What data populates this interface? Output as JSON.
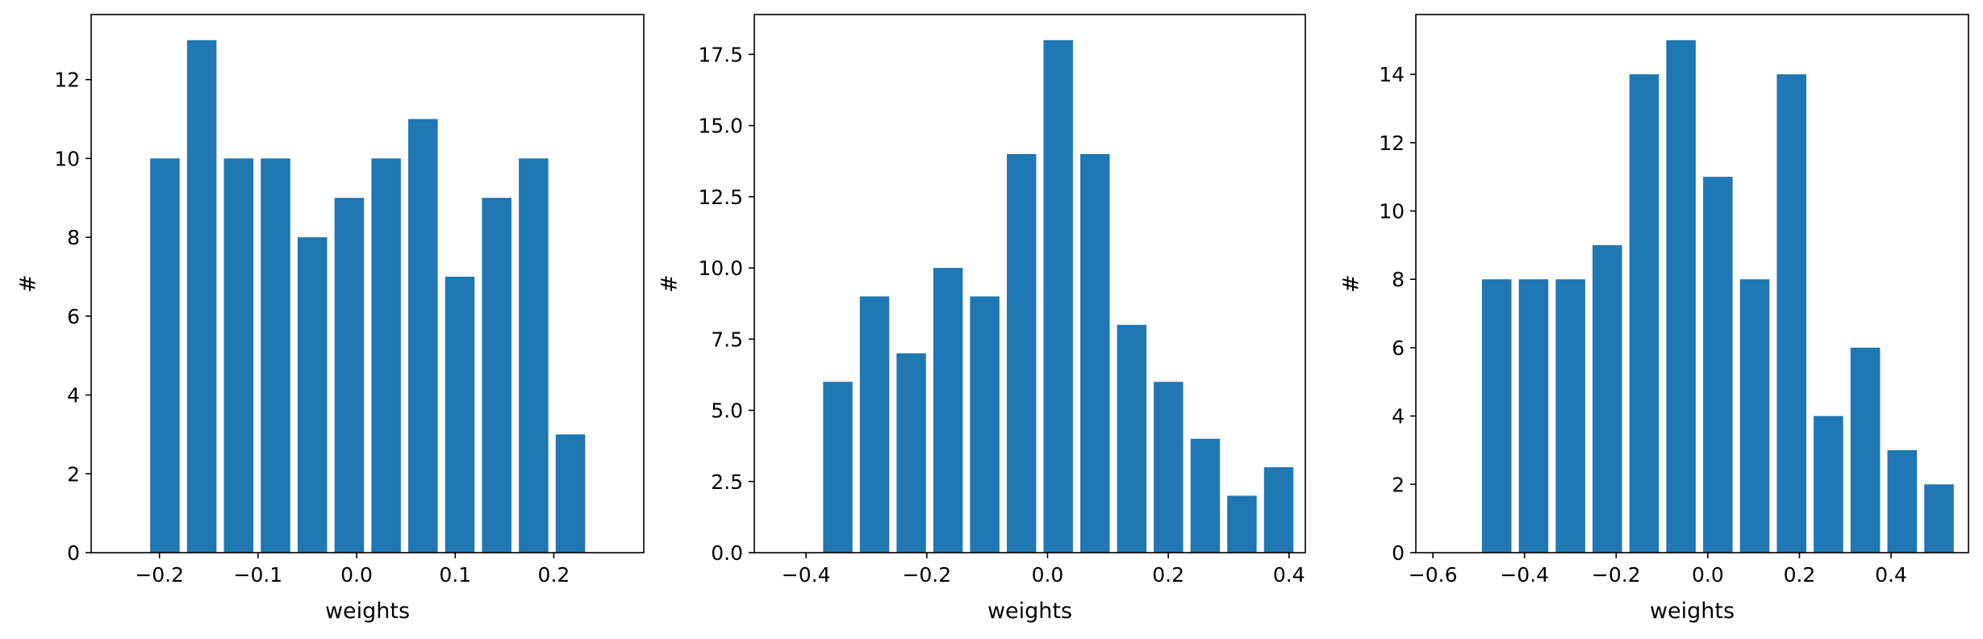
{
  "figure": {
    "background": "#ffffff",
    "bar_color": "#1f77b4"
  },
  "chart_data": [
    {
      "type": "bar",
      "title": "",
      "xlabel": "weights",
      "ylabel": "#",
      "xlim": [
        -0.2693,
        0.2913
      ],
      "ylim": [
        0,
        13.65
      ],
      "xticks": [
        -0.2,
        -0.1,
        0.0,
        0.1,
        0.2
      ],
      "xtick_labels": [
        "−0.2",
        "−0.1",
        "0.0",
        "0.1",
        "0.2"
      ],
      "yticks": [
        0,
        2,
        4,
        6,
        8,
        10,
        12
      ],
      "ytick_labels": [
        "0",
        "2",
        "4",
        "6",
        "8",
        "10",
        "12"
      ],
      "bar_width": 0.0299,
      "x": [
        -0.1945,
        -0.1571,
        -0.1197,
        -0.0823,
        -0.0449,
        -0.0075,
        0.0299,
        0.0673,
        0.1047,
        0.1421,
        0.1795,
        0.2169
      ],
      "values": [
        10,
        13,
        10,
        10,
        8,
        9,
        10,
        11,
        7,
        9,
        10,
        3
      ],
      "grid": false
    },
    {
      "type": "bar",
      "title": "",
      "xlabel": "weights",
      "ylabel": "#",
      "xlim": [
        -0.4857,
        0.427
      ],
      "ylim": [
        0,
        18.9
      ],
      "xticks": [
        -0.4,
        -0.2,
        0.0,
        0.2,
        0.4
      ],
      "xtick_labels": [
        "−0.4",
        "−0.2",
        "0.0",
        "0.2",
        "0.4"
      ],
      "yticks": [
        0,
        2.5,
        5,
        7.5,
        10,
        12.5,
        15,
        17.5
      ],
      "ytick_labels": [
        "0.0",
        "2.5",
        "5.0",
        "7.5",
        "10.0",
        "12.5",
        "15.0",
        "17.5"
      ],
      "bar_width": 0.0487,
      "x": [
        -0.3474,
        -0.2866,
        -0.2257,
        -0.1648,
        -0.104,
        -0.0431,
        0.0177,
        0.0786,
        0.1395,
        0.2003,
        0.2612,
        0.322,
        0.3829
      ],
      "values": [
        6,
        9,
        7,
        10,
        9,
        14,
        18,
        14,
        8,
        6,
        4,
        2,
        3
      ],
      "grid": false
    },
    {
      "type": "bar",
      "title": "",
      "xlabel": "weights",
      "ylabel": "#",
      "xlim": [
        -0.6372,
        0.569
      ],
      "ylim": [
        0,
        15.75
      ],
      "xticks": [
        -0.6,
        -0.4,
        -0.2,
        0.0,
        0.2,
        0.4
      ],
      "xtick_labels": [
        "−0.6",
        "−0.4",
        "−0.2",
        "0.0",
        "0.2",
        "0.4"
      ],
      "yticks": [
        0,
        2,
        4,
        6,
        8,
        10,
        12,
        14
      ],
      "ytick_labels": [
        "0",
        "2",
        "4",
        "6",
        "8",
        "10",
        "12",
        "14"
      ],
      "bar_width": 0.0644,
      "x": [
        -0.4608,
        -0.3803,
        -0.2998,
        -0.2194,
        -0.1389,
        -0.0585,
        0.022,
        0.1024,
        0.1829,
        0.2633,
        0.3438,
        0.4243,
        0.5047
      ],
      "values": [
        8,
        8,
        8,
        9,
        14,
        15,
        11,
        8,
        14,
        4,
        6,
        3,
        2
      ],
      "grid": false
    }
  ]
}
